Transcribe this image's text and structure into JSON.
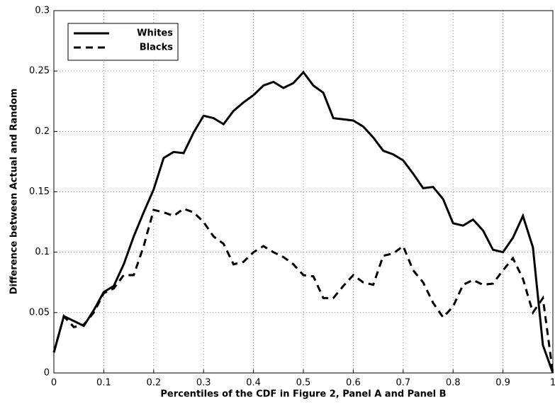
{
  "chart_data": {
    "type": "line",
    "xlabel": "Percentiles of the CDF in Figure 2, Panel A and Panel B",
    "ylabel": "Difference between Actual and Random",
    "x": [
      0,
      0.02,
      0.04,
      0.06,
      0.08,
      0.1,
      0.12,
      0.14,
      0.16,
      0.18,
      0.2,
      0.22,
      0.24,
      0.26,
      0.28,
      0.3,
      0.32,
      0.34,
      0.36,
      0.38,
      0.4,
      0.42,
      0.44,
      0.46,
      0.48,
      0.5,
      0.52,
      0.54,
      0.56,
      0.58,
      0.6,
      0.62,
      0.64,
      0.66,
      0.68,
      0.7,
      0.72,
      0.74,
      0.76,
      0.78,
      0.8,
      0.82,
      0.84,
      0.86,
      0.88,
      0.9,
      0.92,
      0.94,
      0.96,
      0.98,
      1
    ],
    "series": [
      {
        "name": "Whites",
        "color": "#000000",
        "linestyle": "solid",
        "values": [
          0.017,
          0.047,
          0.043,
          0.039,
          0.052,
          0.067,
          0.072,
          0.09,
          0.113,
          0.133,
          0.152,
          0.178,
          0.183,
          0.182,
          0.199,
          0.213,
          0.211,
          0.206,
          0.217,
          0.224,
          0.23,
          0.238,
          0.241,
          0.236,
          0.24,
          0.249,
          0.238,
          0.232,
          0.211,
          0.21,
          0.209,
          0.204,
          0.195,
          0.184,
          0.181,
          0.176,
          0.165,
          0.153,
          0.154,
          0.144,
          0.124,
          0.122,
          0.127,
          0.118,
          0.102,
          0.1,
          0.112,
          0.13,
          0.104,
          0.023,
          0
        ]
      },
      {
        "name": "Blacks",
        "color": "#000000",
        "linestyle": "dashed",
        "values": [
          0.017,
          0.047,
          0.038,
          0.04,
          0.05,
          0.066,
          0.07,
          0.081,
          0.081,
          0.105,
          0.135,
          0.133,
          0.13,
          0.136,
          0.133,
          0.125,
          0.113,
          0.107,
          0.09,
          0.092,
          0.1,
          0.105,
          0.1,
          0.096,
          0.09,
          0.081,
          0.08,
          0.062,
          0.062,
          0.072,
          0.081,
          0.075,
          0.073,
          0.097,
          0.099,
          0.105,
          0.085,
          0.075,
          0.058,
          0.046,
          0.055,
          0.073,
          0.077,
          0.073,
          0.074,
          0.085,
          0.095,
          0.078,
          0.05,
          0.062,
          0
        ]
      }
    ],
    "xlim": [
      0,
      1
    ],
    "ylim": [
      0,
      0.3
    ],
    "xticks": [
      0,
      0.1,
      0.2,
      0.3,
      0.4,
      0.5,
      0.6,
      0.7,
      0.8,
      0.9,
      1
    ],
    "yticks": [
      0,
      0.05,
      0.1,
      0.15,
      0.2,
      0.25,
      0.3
    ],
    "grid": true,
    "legend": "upper left"
  }
}
